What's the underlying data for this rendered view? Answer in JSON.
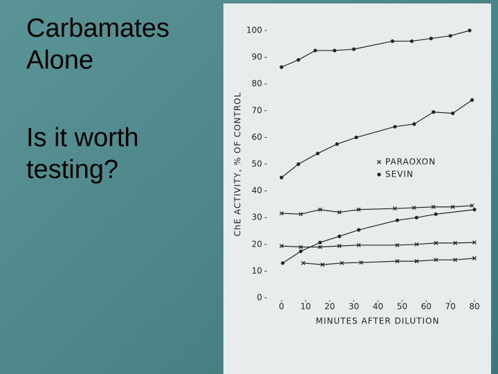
{
  "slide": {
    "title_lines": [
      "Carbamates",
      "Alone"
    ],
    "question_lines": [
      "Is it worth",
      "testing?"
    ]
  },
  "chart_data": {
    "type": "scatter",
    "x_label": "MINUTES AFTER DILUTION",
    "y_label": "ChE ACTIVITY, % OF CONTROL",
    "xlim": [
      0,
      80
    ],
    "xticks": [
      0,
      10,
      20,
      30,
      40,
      50,
      60,
      70,
      80
    ],
    "ylim": [
      0,
      100
    ],
    "yticks": [
      0,
      10,
      20,
      30,
      40,
      50,
      60,
      70,
      80,
      90,
      100
    ],
    "legend": "right",
    "series": [
      {
        "name": "PARAOXON",
        "marker": "x",
        "color": "#222222",
        "curves": [
          {
            "x": [
              0,
              8,
              16,
              24,
              32,
              47,
              55,
              63,
              71,
              79
            ],
            "values": [
              31.6,
              31.3,
              33,
              32,
              33,
              33.4,
              33.7,
              34,
              34,
              34.5
            ]
          },
          {
            "x": [
              0,
              8,
              16,
              24,
              32,
              48,
              56,
              64,
              72,
              80
            ],
            "values": [
              19.4,
              19,
              19,
              19.4,
              19.7,
              19.7,
              20,
              20.5,
              20.5,
              20.7
            ]
          },
          {
            "x": [
              9,
              17,
              25,
              33,
              48,
              56,
              64,
              72,
              80
            ],
            "values": [
              13,
              12.4,
              13,
              13.2,
              13.7,
              13.7,
              14.2,
              14.2,
              14.8
            ]
          }
        ]
      },
      {
        "name": "SEVIN",
        "marker": "dot",
        "color": "#222222",
        "curves": [
          {
            "x": [
              0,
              7,
              14,
              22,
              30,
              46,
              54,
              62,
              70,
              78
            ],
            "values": [
              86.3,
              89,
              92.5,
              92.5,
              93,
              96,
              96,
              97,
              98,
              100
            ]
          },
          {
            "x": [
              0,
              7,
              15,
              23,
              31,
              47,
              55,
              63,
              71,
              79
            ],
            "values": [
              45,
              50,
              54,
              57.5,
              60,
              64,
              65,
              69.5,
              69,
              74
            ]
          },
          {
            "x": [
              0.5,
              8,
              16,
              24,
              32,
              48,
              56,
              64,
              80
            ],
            "values": [
              13,
              17.4,
              20.7,
              23,
              25.4,
              29,
              30,
              31.3,
              33
            ]
          }
        ]
      }
    ]
  }
}
